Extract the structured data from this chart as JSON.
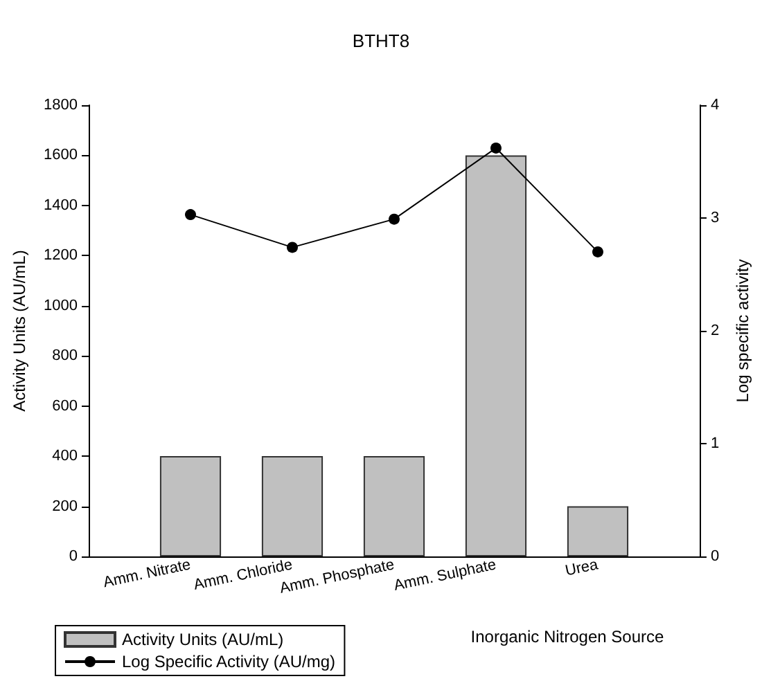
{
  "chart_data": {
    "type": "bar",
    "title": "BTHT8",
    "xlabel": "Inorganic Nitrogen Source",
    "ylabel": "Activity Units (AU/mL)",
    "y2label": "Log specific activity",
    "categories": [
      null,
      "Amm. Nitrate",
      "Amm. Chloride",
      "Amm. Phosphate",
      "Amm. Sulphate",
      "Urea",
      null
    ],
    "series": [
      {
        "name": "Activity Units (AU/mL)",
        "color": "#c0c0c0",
        "values": [
          null,
          400,
          400,
          400,
          1600,
          200,
          null
        ]
      },
      {
        "name": "Log Specific Activity (AU/mg)",
        "type": "line",
        "axis": "y2",
        "color": "#000000",
        "marker": "circle",
        "line_style": "solid",
        "values": [
          null,
          3.03,
          2.74,
          2.99,
          3.62,
          2.7,
          null
        ]
      }
    ],
    "ylim": [
      0,
      1800
    ],
    "yticks": [
      0,
      200,
      400,
      600,
      800,
      1000,
      1200,
      1400,
      1600,
      1800
    ],
    "y2lim": [
      0,
      4
    ],
    "y2ticks": [
      0,
      1,
      2,
      3,
      4
    ],
    "legend": "bottom left",
    "grid": false
  }
}
